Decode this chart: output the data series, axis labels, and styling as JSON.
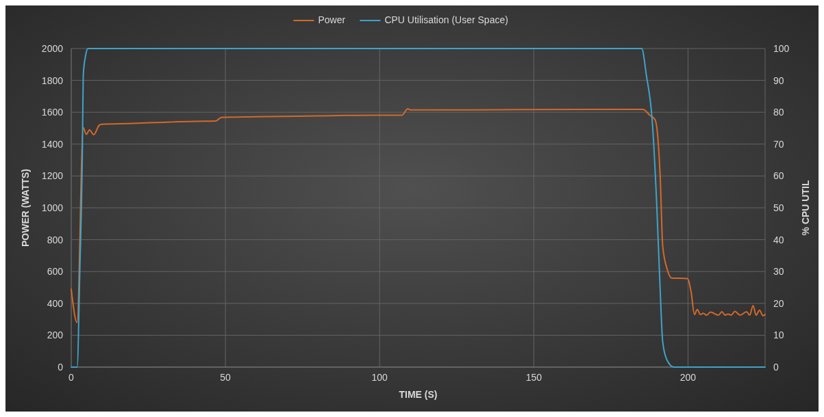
{
  "chart_data": {
    "type": "line",
    "xlabel": "TIME (S)",
    "ylabel": "POWER (WATTS)",
    "y2label": "% CPU UTIL",
    "xlim": [
      0,
      225
    ],
    "xticks": [
      0,
      50,
      100,
      150,
      200
    ],
    "ylim": [
      0,
      2000
    ],
    "yticks": [
      0,
      200,
      400,
      600,
      800,
      1000,
      1200,
      1400,
      1600,
      1800,
      2000
    ],
    "y2lim": [
      0,
      100
    ],
    "y2ticks": [
      0,
      10,
      20,
      30,
      40,
      50,
      60,
      70,
      80,
      90,
      100
    ],
    "grid": true,
    "legend": "top",
    "line_style": "solid",
    "marker": "none",
    "series": [
      {
        "name": "Power",
        "color": "#d4692a",
        "x": [
          0,
          1.9,
          3.9,
          4.9,
          5.9,
          7.3,
          9.1,
          10,
          20,
          30,
          40,
          46.9,
          48.7,
          60,
          80,
          100,
          107.3,
          109.1,
          110,
          130,
          150,
          170,
          185.4,
          187.6,
          189.3,
          190.2,
          191,
          191.8,
          193.2,
          194.7,
          199.8,
          201,
          202.1,
          203,
          204,
          205,
          206,
          207.3,
          209.9,
          211,
          212,
          213,
          214,
          215.2,
          216.9,
          219,
          220,
          221.1,
          222.1,
          223.2,
          224.3,
          225
        ],
        "values": [
          489,
          280,
          1503,
          1461,
          1489,
          1459,
          1519,
          1525,
          1530,
          1537,
          1543,
          1545,
          1568,
          1572,
          1577,
          1582,
          1582,
          1621,
          1615,
          1615,
          1617,
          1618,
          1618,
          1582,
          1554,
          1446,
          1189,
          760,
          618,
          559,
          556,
          473,
          330,
          362,
          330,
          338,
          326,
          345,
          326,
          348,
          326,
          333,
          326,
          350,
          326,
          348,
          326,
          386,
          326,
          357,
          323,
          330
        ]
      },
      {
        "name": "CPU Utilisation (User Space)",
        "color": "#3fa3c9",
        "axis": "y2",
        "x": [
          0,
          1.9,
          2.8,
          3.6,
          3.9,
          4.7,
          5.4,
          185,
          186.5,
          188.4,
          189.8,
          191,
          191.8,
          193.2,
          195.4,
          225
        ],
        "values": [
          0,
          0,
          30.8,
          66.6,
          91.6,
          98,
          100,
          100,
          91.6,
          77.3,
          52.3,
          23.7,
          7.9,
          2.2,
          0,
          0
        ]
      }
    ]
  }
}
